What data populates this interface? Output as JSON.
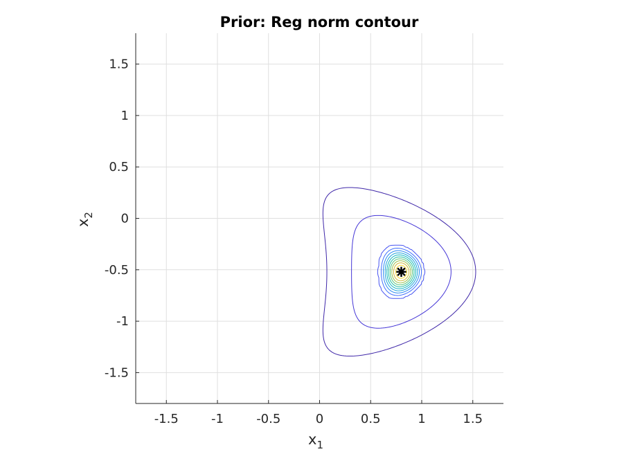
{
  "chart_data": {
    "type": "contour",
    "title": "Prior: Reg norm contour",
    "xlabel_base": "x",
    "xlabel_sub": "1",
    "ylabel_base": "x",
    "ylabel_sub": "2",
    "xlim": [
      -1.8,
      1.8
    ],
    "ylim": [
      -1.8,
      1.8
    ],
    "xticks": [
      -1.5,
      -1,
      -0.5,
      0,
      0.5,
      1,
      1.5
    ],
    "xtick_labels": [
      "-1.5",
      "-1",
      "-0.5",
      "0",
      "0.5",
      "1",
      "1.5"
    ],
    "yticks": [
      -1.5,
      -1,
      -0.5,
      0,
      0.5,
      1,
      1.5
    ],
    "ytick_labels": [
      "-1.5",
      "-1",
      "-0.5",
      "0",
      "0.5",
      "1",
      "1.5"
    ],
    "grid": true,
    "colormap": "parula",
    "mode": {
      "x": 0.8,
      "y": -0.52,
      "marker_color": "#000000"
    },
    "field": {
      "center": [
        0.8,
        -0.52
      ],
      "curvature": 0.75,
      "scale_u": 0.12,
      "scale_v": 0.14,
      "tail_u": 0.4,
      "tail_v": 0.45,
      "tail_weight": 0.7
    },
    "levels": [
      0.04,
      0.1,
      0.18,
      0.26,
      0.34,
      0.42,
      0.5,
      0.58,
      0.66,
      0.74,
      0.82,
      0.9
    ],
    "level_colors": [
      "#3e26a8",
      "#4435d6",
      "#4653f1",
      "#3f6ffe",
      "#2a8af2",
      "#1fa3d9",
      "#12b5c0",
      "#23bfa3",
      "#5ac57e",
      "#9cc24d",
      "#d3b93a",
      "#f9d829"
    ]
  }
}
